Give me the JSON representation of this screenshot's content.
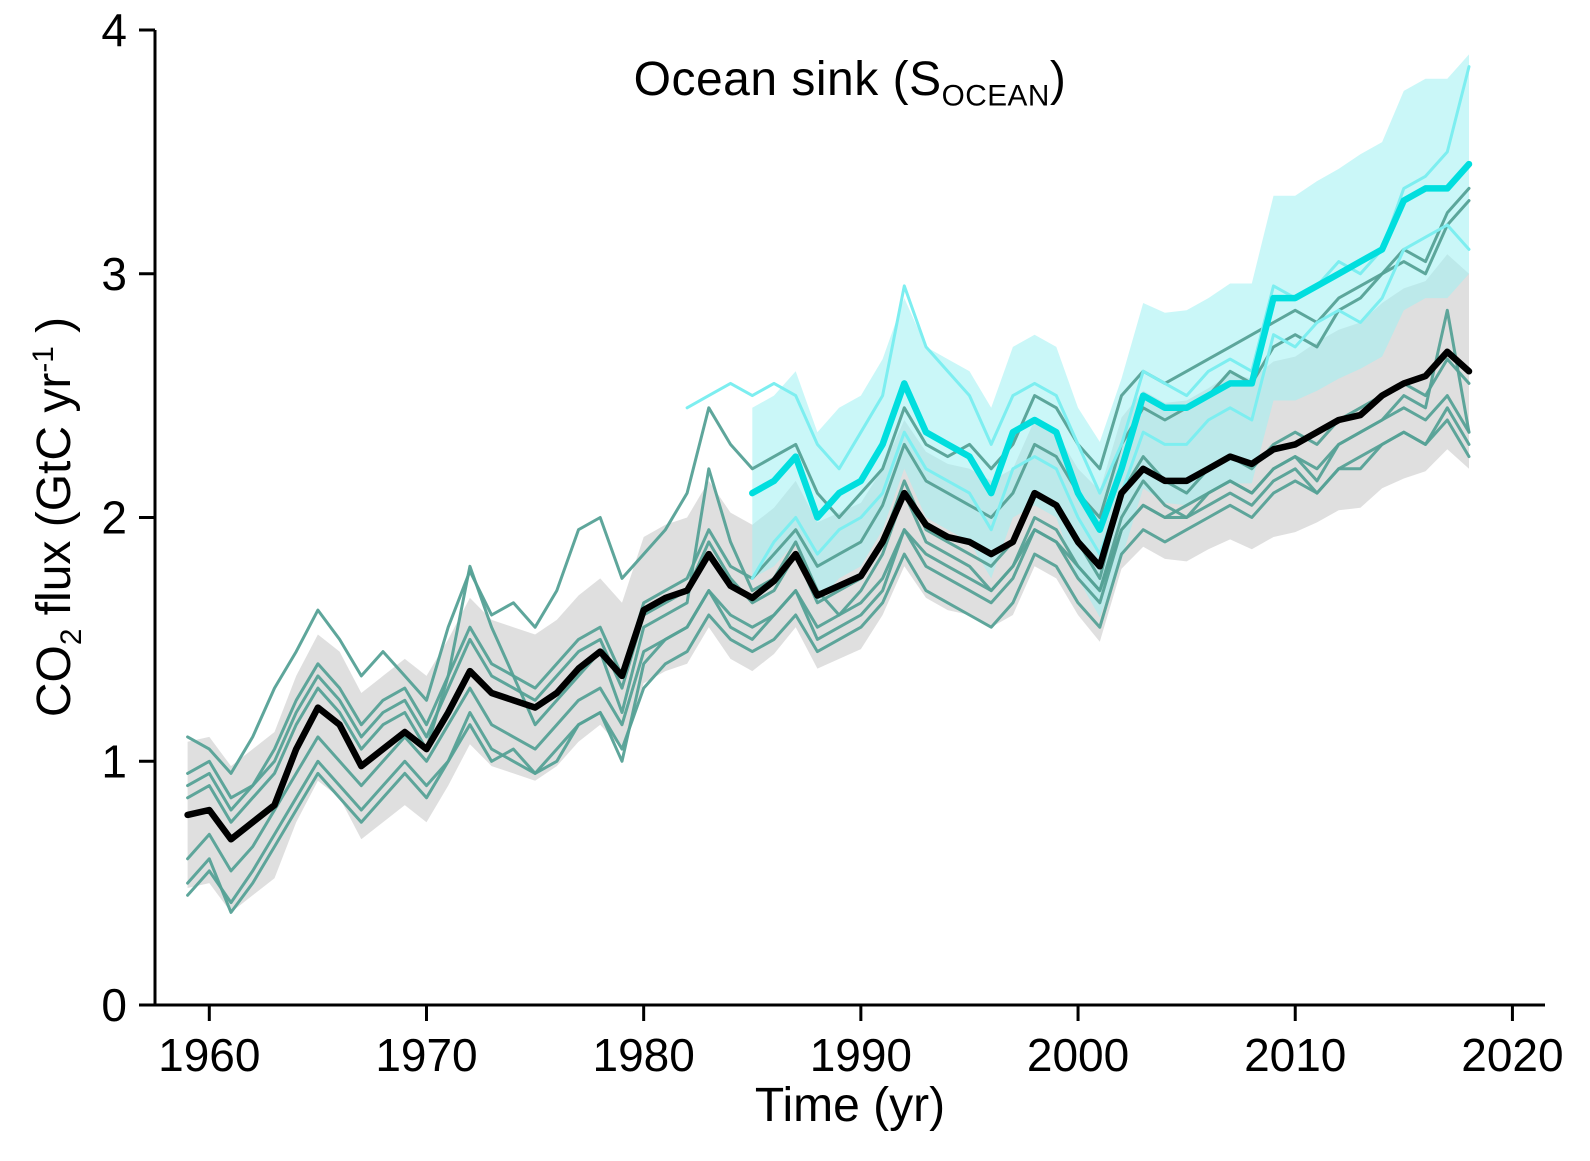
{
  "figure": {
    "title": {
      "pre": "Ocean sink (S",
      "sub": "OCEAN",
      "post": ")"
    },
    "x_label": "Time (yr)",
    "y_label": {
      "p1": "CO",
      "sub": "2",
      "p2": " flux (GtC yr",
      "sup": "-1",
      "p3": " )"
    }
  },
  "chart_data": {
    "type": "line",
    "title": "Ocean sink (S_OCEAN)",
    "xlabel": "Time (yr)",
    "ylabel": "CO2 flux (GtC yr-1)",
    "xlim": [
      1957.5,
      2021.5
    ],
    "ylim": [
      0,
      4
    ],
    "x_ticks": [
      1960,
      1970,
      1980,
      1990,
      2000,
      2010,
      2020
    ],
    "y_ticks": [
      0,
      1,
      2,
      3,
      4
    ],
    "grid": false,
    "legend": "none",
    "colors": {
      "ensemble_mean": "#000000",
      "gray_band": "#d9d9d9",
      "model_line": "#55a196",
      "product_mean": "#00dede",
      "product_member": "#7deef0",
      "cyan_band": "#9ef1f2"
    },
    "years": [
      1959,
      1960,
      1961,
      1962,
      1963,
      1964,
      1965,
      1966,
      1967,
      1968,
      1969,
      1970,
      1971,
      1972,
      1973,
      1974,
      1975,
      1976,
      1977,
      1978,
      1979,
      1980,
      1981,
      1982,
      1983,
      1984,
      1985,
      1986,
      1987,
      1988,
      1989,
      1990,
      1991,
      1992,
      1993,
      1994,
      1995,
      1996,
      1997,
      1998,
      1999,
      2000,
      2001,
      2002,
      2003,
      2004,
      2005,
      2006,
      2007,
      2008,
      2009,
      2010,
      2011,
      2012,
      2013,
      2014,
      2015,
      2016,
      2017,
      2018
    ],
    "ensemble_mean": [
      0.78,
      0.8,
      0.68,
      0.75,
      0.82,
      1.05,
      1.22,
      1.15,
      0.98,
      1.05,
      1.12,
      1.05,
      1.2,
      1.37,
      1.28,
      1.25,
      1.22,
      1.28,
      1.38,
      1.45,
      1.35,
      1.62,
      1.67,
      1.7,
      1.85,
      1.72,
      1.67,
      1.74,
      1.85,
      1.68,
      1.72,
      1.76,
      1.9,
      2.1,
      1.97,
      1.92,
      1.9,
      1.85,
      1.9,
      2.1,
      2.05,
      1.9,
      1.8,
      2.1,
      2.2,
      2.15,
      2.15,
      2.2,
      2.25,
      2.22,
      2.28,
      2.3,
      2.35,
      2.4,
      2.42,
      2.5,
      2.55,
      2.58,
      2.68,
      2.6
    ],
    "mean_band_halfwidth": [
      0.3,
      0.3,
      0.3,
      0.3,
      0.3,
      0.3,
      0.3,
      0.3,
      0.3,
      0.3,
      0.3,
      0.3,
      0.3,
      0.3,
      0.3,
      0.3,
      0.3,
      0.3,
      0.3,
      0.3,
      0.3,
      0.3,
      0.3,
      0.3,
      0.3,
      0.3,
      0.3,
      0.3,
      0.3,
      0.3,
      0.3,
      0.3,
      0.3,
      0.3,
      0.3,
      0.3,
      0.3,
      0.3,
      0.3,
      0.3,
      0.3,
      0.3,
      0.31,
      0.31,
      0.32,
      0.32,
      0.33,
      0.33,
      0.34,
      0.35,
      0.36,
      0.36,
      0.37,
      0.37,
      0.38,
      0.38,
      0.39,
      0.39,
      0.4,
      0.4
    ],
    "model_series": [
      [
        1.1,
        1.05,
        0.95,
        1.1,
        1.3,
        1.45,
        1.62,
        1.5,
        1.35,
        1.45,
        1.35,
        1.25,
        1.55,
        1.78,
        1.6,
        1.65,
        1.55,
        1.7,
        1.95,
        2.0,
        1.75,
        1.85,
        1.95,
        2.1,
        2.45,
        2.3,
        2.2,
        2.25,
        2.3,
        2.1,
        2.0,
        2.1,
        2.2,
        2.45,
        2.3,
        2.25,
        2.3,
        2.2,
        2.3,
        2.5,
        2.45,
        2.3,
        2.2,
        2.5,
        2.6,
        2.55,
        2.6,
        2.65,
        2.7,
        2.75,
        2.8,
        2.85,
        2.8,
        2.9,
        2.95,
        3.0,
        3.1,
        3.05,
        3.25,
        3.35
      ],
      [
        0.45,
        0.55,
        0.42,
        0.55,
        0.7,
        0.85,
        1.0,
        0.9,
        0.8,
        0.9,
        1.0,
        0.9,
        1.0,
        1.15,
        1.0,
        1.05,
        0.95,
        1.0,
        1.15,
        1.2,
        1.05,
        1.3,
        1.4,
        1.45,
        1.6,
        1.5,
        1.45,
        1.5,
        1.6,
        1.45,
        1.5,
        1.55,
        1.65,
        1.85,
        1.7,
        1.65,
        1.6,
        1.55,
        1.65,
        1.85,
        1.8,
        1.65,
        1.55,
        1.85,
        1.95,
        1.9,
        1.95,
        2.0,
        2.05,
        2.0,
        2.1,
        2.15,
        2.1,
        2.2,
        2.2,
        2.3,
        2.35,
        2.3,
        2.4,
        2.25
      ],
      [
        0.95,
        1.0,
        0.85,
        0.9,
        1.0,
        1.2,
        1.35,
        1.25,
        1.1,
        1.2,
        1.25,
        1.1,
        1.3,
        1.5,
        1.35,
        1.3,
        1.25,
        1.35,
        1.45,
        1.5,
        1.3,
        1.6,
        1.65,
        1.7,
        1.9,
        1.75,
        1.65,
        1.7,
        1.85,
        1.65,
        1.7,
        1.75,
        1.9,
        2.15,
        1.95,
        1.9,
        1.85,
        1.8,
        1.9,
        2.1,
        2.05,
        1.9,
        1.75,
        2.1,
        2.25,
        2.15,
        2.1,
        2.2,
        2.25,
        2.2,
        2.3,
        2.35,
        2.3,
        2.4,
        2.45,
        2.5,
        2.55,
        2.5,
        2.65,
        2.55
      ],
      [
        0.5,
        0.6,
        0.38,
        0.5,
        0.65,
        0.8,
        0.95,
        0.85,
        0.75,
        0.85,
        0.95,
        0.85,
        1.0,
        1.2,
        1.05,
        1.0,
        0.95,
        1.05,
        1.15,
        1.2,
        1.0,
        1.4,
        1.5,
        1.55,
        1.7,
        1.55,
        1.5,
        1.6,
        1.7,
        1.5,
        1.55,
        1.6,
        1.7,
        1.95,
        1.8,
        1.75,
        1.7,
        1.65,
        1.75,
        1.95,
        1.9,
        1.75,
        1.65,
        1.95,
        2.05,
        2.0,
        2.05,
        2.1,
        2.15,
        2.1,
        2.2,
        2.25,
        2.2,
        2.3,
        2.35,
        2.4,
        2.45,
        2.4,
        2.5,
        2.35
      ],
      [
        0.85,
        0.9,
        0.75,
        0.85,
        0.95,
        1.15,
        1.3,
        1.2,
        1.05,
        1.15,
        1.2,
        1.05,
        1.35,
        1.8,
        1.55,
        1.35,
        1.15,
        1.25,
        1.35,
        1.45,
        1.2,
        1.55,
        1.6,
        1.65,
        2.2,
        1.9,
        1.7,
        1.75,
        1.9,
        1.7,
        1.6,
        1.7,
        1.85,
        2.1,
        1.9,
        1.85,
        1.8,
        1.7,
        1.8,
        2.0,
        1.95,
        1.8,
        1.7,
        2.0,
        2.15,
        2.05,
        2.0,
        2.1,
        2.15,
        2.1,
        2.2,
        2.25,
        2.15,
        2.3,
        2.35,
        2.4,
        2.5,
        2.45,
        2.85,
        2.35
      ],
      [
        0.9,
        0.95,
        0.8,
        0.9,
        1.05,
        1.25,
        1.4,
        1.3,
        1.15,
        1.25,
        1.3,
        1.15,
        1.35,
        1.55,
        1.4,
        1.35,
        1.3,
        1.4,
        1.5,
        1.55,
        1.35,
        1.65,
        1.7,
        1.75,
        1.95,
        1.8,
        1.75,
        1.85,
        1.95,
        1.8,
        1.85,
        1.9,
        2.05,
        2.3,
        2.15,
        2.1,
        2.05,
        2.0,
        2.1,
        2.3,
        2.25,
        2.1,
        2.0,
        2.3,
        2.45,
        2.4,
        2.45,
        2.5,
        2.6,
        2.55,
        2.7,
        2.75,
        2.7,
        2.85,
        2.9,
        3.0,
        3.05,
        3.0,
        3.2,
        3.3
      ],
      [
        0.6,
        0.7,
        0.55,
        0.65,
        0.8,
        0.95,
        1.1,
        1.0,
        0.9,
        1.0,
        1.1,
        1.0,
        1.15,
        1.3,
        1.15,
        1.1,
        1.05,
        1.15,
        1.25,
        1.3,
        1.15,
        1.45,
        1.5,
        1.55,
        1.7,
        1.6,
        1.55,
        1.6,
        1.7,
        1.55,
        1.6,
        1.65,
        1.75,
        1.95,
        1.85,
        1.8,
        1.75,
        1.7,
        1.8,
        1.95,
        1.9,
        1.8,
        1.7,
        1.95,
        2.05,
        2.0,
        2.0,
        2.05,
        2.1,
        2.05,
        2.15,
        2.2,
        2.1,
        2.2,
        2.25,
        2.3,
        2.35,
        2.3,
        2.45,
        2.3
      ]
    ],
    "data_products": {
      "mean": {
        "start_year": 1985,
        "values": [
          2.1,
          2.15,
          2.25,
          2.0,
          2.1,
          2.15,
          2.3,
          2.55,
          2.35,
          2.3,
          2.25,
          2.1,
          2.35,
          2.4,
          2.35,
          2.1,
          1.95,
          2.2,
          2.5,
          2.45,
          2.45,
          2.5,
          2.55,
          2.55,
          2.9,
          2.9,
          2.95,
          3.0,
          3.05,
          3.1,
          3.3,
          3.35,
          3.35,
          3.45
        ]
      },
      "band_halfwidth": [
        0.35,
        0.35,
        0.35,
        0.35,
        0.35,
        0.35,
        0.35,
        0.35,
        0.35,
        0.35,
        0.35,
        0.35,
        0.35,
        0.35,
        0.35,
        0.35,
        0.36,
        0.37,
        0.38,
        0.39,
        0.4,
        0.4,
        0.41,
        0.41,
        0.42,
        0.42,
        0.43,
        0.43,
        0.44,
        0.44,
        0.45,
        0.45,
        0.45,
        0.45
      ],
      "members": [
        {
          "start_year": 1982,
          "values": [
            2.45,
            2.5,
            2.55,
            2.5,
            2.55,
            2.5,
            2.3,
            2.2,
            2.35,
            2.5,
            2.95,
            2.7,
            2.6,
            2.5,
            2.3,
            2.5,
            2.55,
            2.5,
            2.3,
            2.1,
            2.3,
            2.6,
            2.55,
            2.5,
            2.6,
            2.65,
            2.6,
            2.95,
            2.9,
            2.95,
            3.05,
            3.0,
            3.1,
            3.35,
            3.4,
            3.5,
            3.85
          ]
        },
        {
          "start_year": 1985,
          "values": [
            1.75,
            1.9,
            2.0,
            1.85,
            1.95,
            2.0,
            2.1,
            2.35,
            2.2,
            2.15,
            2.1,
            1.95,
            2.2,
            2.25,
            2.2,
            2.0,
            1.85,
            2.1,
            2.35,
            2.3,
            2.3,
            2.4,
            2.45,
            2.4,
            2.75,
            2.7,
            2.8,
            2.85,
            2.8,
            2.9,
            3.1,
            3.15,
            3.2,
            3.1
          ]
        }
      ]
    }
  }
}
